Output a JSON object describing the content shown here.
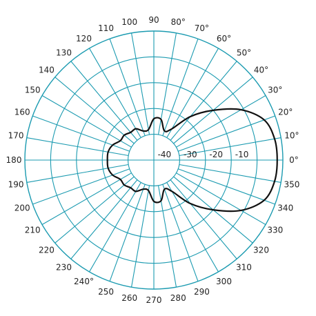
{
  "chart_data": {
    "type": "polar",
    "title": "",
    "radial_unit": "dB",
    "radial_range": [
      -50,
      0
    ],
    "ring_values": [
      -40,
      -30,
      -20,
      -10
    ],
    "ring_labels": [
      "-40",
      "-30",
      "-20",
      "-10"
    ],
    "angle_step_deg": 10,
    "angle_labels": [
      "0°",
      "10°",
      "20°",
      "30°",
      "40°",
      "50°",
      "60°",
      "70°",
      "80°",
      "90",
      "100",
      "110",
      "120",
      "130",
      "140",
      "150",
      "160",
      "170",
      "180",
      "190",
      "200",
      "210",
      "220",
      "230",
      "240°",
      "250",
      "260",
      "270",
      "280",
      "290",
      "300",
      "310",
      "320",
      "330",
      "340",
      "350"
    ],
    "grid": true,
    "grid_color": "#1a9ab0",
    "series": [
      {
        "color": "#111111",
        "points": [
          {
            "deg": 0,
            "db": -2.2
          },
          {
            "deg": 10,
            "db": -2.5
          },
          {
            "deg": 20,
            "db": -4.5
          },
          {
            "deg": 30,
            "db": -11
          },
          {
            "deg": 40,
            "db": -20
          },
          {
            "deg": 50,
            "db": -28
          },
          {
            "deg": 60,
            "db": -36
          },
          {
            "deg": 70,
            "db": -38
          },
          {
            "deg": 80,
            "db": -34
          },
          {
            "deg": 90,
            "db": -34
          },
          {
            "deg": 100,
            "db": -38
          },
          {
            "deg": 110,
            "db": -38
          },
          {
            "deg": 120,
            "db": -36
          },
          {
            "deg": 130,
            "db": -36
          },
          {
            "deg": 140,
            "db": -35
          },
          {
            "deg": 150,
            "db": -35
          },
          {
            "deg": 160,
            "db": -33
          },
          {
            "deg": 170,
            "db": -32
          },
          {
            "deg": 180,
            "db": -32
          },
          {
            "deg": 190,
            "db": -32
          },
          {
            "deg": 200,
            "db": -33
          },
          {
            "deg": 210,
            "db": -35
          },
          {
            "deg": 220,
            "db": -35
          },
          {
            "deg": 230,
            "db": -36
          },
          {
            "deg": 240,
            "db": -36
          },
          {
            "deg": 250,
            "db": -38
          },
          {
            "deg": 260,
            "db": -38
          },
          {
            "deg": 270,
            "db": -34
          },
          {
            "deg": 280,
            "db": -34
          },
          {
            "deg": 290,
            "db": -38
          },
          {
            "deg": 300,
            "db": -36
          },
          {
            "deg": 310,
            "db": -28
          },
          {
            "deg": 320,
            "db": -20
          },
          {
            "deg": 330,
            "db": -11
          },
          {
            "deg": 340,
            "db": -4.5
          },
          {
            "deg": 350,
            "db": -2.5
          }
        ]
      }
    ]
  }
}
